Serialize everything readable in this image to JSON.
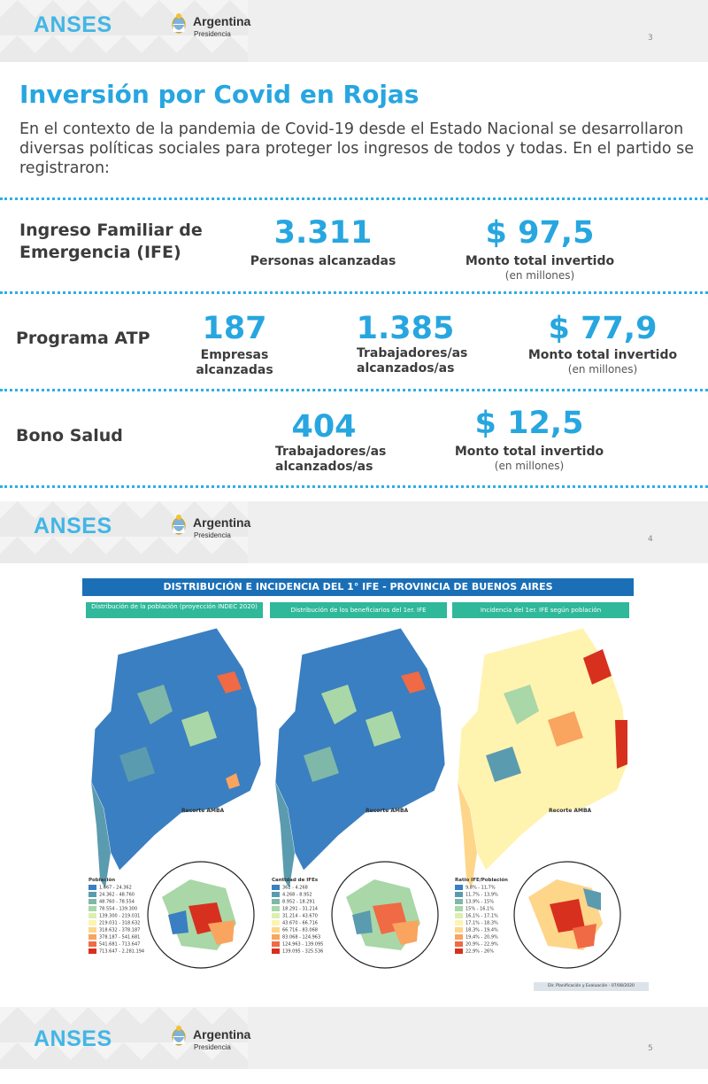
{
  "headers": [
    {
      "brand": "ANSES",
      "gov": "Argentina",
      "gov_sub": "Presidencia",
      "page": "3"
    },
    {
      "brand": "ANSES",
      "gov": "Argentina",
      "gov_sub": "Presidencia",
      "page": "4"
    },
    {
      "brand": "ANSES",
      "gov": "Argentina",
      "gov_sub": "Presidencia",
      "page": "5"
    }
  ],
  "title": "Inversión por Covid en Rojas",
  "intro": "En el contexto de la pandemia de Covid-19 desde el Estado Nacional se desarrollaron diversas políticas sociales para proteger los ingresos de todos y todas. En el partido se registraron:",
  "ife": {
    "label": "Ingreso Familiar de Emergencia (IFE)",
    "people_value": "3.311",
    "people_caption": "Personas alcanzadas",
    "amount_value": "$ 97,5",
    "amount_caption": "Monto total invertido",
    "amount_unit": "(en millones)"
  },
  "atp": {
    "label": "Programa ATP",
    "companies_value": "187",
    "companies_caption": "Empresas alcanzadas",
    "workers_value": "1.385",
    "workers_caption": "Trabajadores/as alcanzados/as",
    "amount_value": "$ 77,9",
    "amount_caption": "Monto total invertido",
    "amount_unit": "(en millones)"
  },
  "bono": {
    "label": "Bono Salud",
    "workers_value": "404",
    "workers_caption": "Trabajadores/as alcanzados/as",
    "amount_value": "$ 12,5",
    "amount_caption": "Monto total invertido",
    "amount_unit": "(en millones)"
  },
  "map": {
    "title": "DISTRIBUCIÓN E INCIDENCIA DEL 1° IFE - PROVINCIA DE BUENOS AIRES",
    "panels": [
      {
        "heading": "Distribución de la población (proyección INDEC 2020)",
        "recorte": "Recorte AMBA",
        "legend_title": "Población",
        "legend": [
          "1.667 - 24.362",
          "24.362 - 48.760",
          "48.760 - 78.554",
          "78.554 - 139.300",
          "139.300 - 219.031",
          "219.031 - 318.632",
          "318.632 - 378.187",
          "378.187 - 541.681",
          "541.681 - 713.647",
          "713.647 - 2.281.194"
        ]
      },
      {
        "heading": "Distribución de los beneficiarios del 1er. IFE",
        "recorte": "Recorte AMBA",
        "legend_title": "Cantidad de IFEs",
        "legend": [
          "362 - 4.268",
          "4.268 - 8.952",
          "8.952 - 18.291",
          "18.291 - 31.214",
          "31.214 - 43.670",
          "43.670 - 66.716",
          "66.716 - 83.068",
          "83.068 - 124.963",
          "124.963 - 139.095",
          "139.095 - 325.536"
        ]
      },
      {
        "heading": "Incidencia del 1er. IFE según población",
        "recorte": "Recorte AMBA",
        "legend_title": "Ratio IFE/Población",
        "legend": [
          "9,8% - 11,7%",
          "11,7% - 13,9%",
          "13,9% - 15%",
          "15% - 16,1%",
          "16,1% - 17,1%",
          "17,1% - 18,3%",
          "18,3% - 19,4%",
          "19,4% - 20,9%",
          "20,9% - 22,9%",
          "22,9% - 26%"
        ]
      }
    ],
    "legend_colors": [
      "#3a7fc1",
      "#5b9bb0",
      "#7fb8a8",
      "#a9d7a7",
      "#dcefb0",
      "#fff3b0",
      "#fdd68a",
      "#f9a45f",
      "#ef6a45",
      "#d7301f"
    ],
    "credit": "Dir. Planificación y Evaluación - 07/08/2020"
  }
}
